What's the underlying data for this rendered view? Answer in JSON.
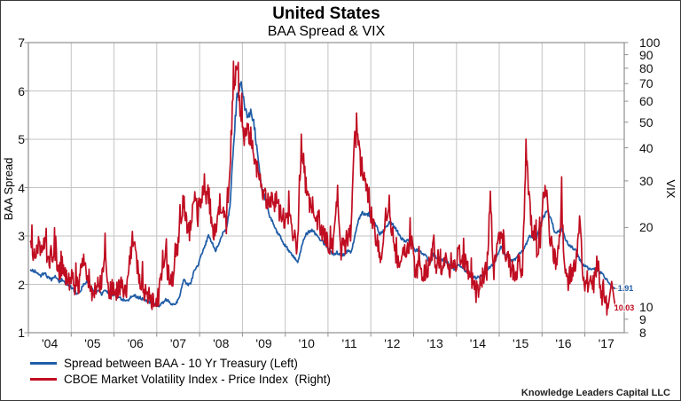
{
  "header": {
    "title": "United States",
    "subtitle": "BAA Spread & VIX"
  },
  "attribution": "Knowledge Leaders Capital LLC",
  "colors": {
    "spread_line": "#1f5ca6",
    "vix_line": "#c00d21",
    "grid": "#c3c3c3",
    "frame": "#8f8f8f",
    "leader": "#b3b3b3"
  },
  "chart_data": {
    "type": "line",
    "title": "United States",
    "subtitle": "BAA Spread & VIX",
    "x_axis": {
      "start_month": "2004-01",
      "end_month": "2017-09",
      "tick_labels": [
        "'04",
        "'05",
        "'06",
        "'07",
        "'08",
        "'09",
        "'10",
        "'11",
        "'12",
        "'13",
        "'14",
        "'15",
        "'16",
        "'17"
      ],
      "gridlines": true
    },
    "left_axis": {
      "label": "BAA Spread",
      "scale": "linear",
      "min": 1,
      "max": 7,
      "ticks": [
        7,
        6,
        5,
        4,
        3,
        2,
        1
      ]
    },
    "right_axis": {
      "label": "VIX",
      "scale": "log",
      "min": 8,
      "max": 100,
      "ticks": [
        100,
        90,
        80,
        70,
        60,
        50,
        40,
        30,
        20,
        10,
        9,
        8
      ]
    },
    "series": [
      {
        "name": "Spread between BAA - 10 Yr Treasury (Left)",
        "axis": "left",
        "color": "#1f5ca6",
        "end_label": "1.91",
        "resolution": "monthly",
        "values": [
          2.3,
          2.28,
          2.24,
          2.18,
          2.24,
          2.14,
          2.1,
          2.16,
          2.05,
          2.1,
          2.02,
          1.98,
          1.9,
          1.82,
          1.86,
          2.0,
          2.06,
          1.92,
          1.85,
          1.88,
          1.8,
          1.88,
          1.82,
          1.8,
          1.75,
          1.72,
          1.68,
          1.65,
          1.72,
          1.78,
          1.73,
          1.72,
          1.68,
          1.65,
          1.62,
          1.6,
          1.55,
          1.6,
          1.7,
          1.63,
          1.58,
          1.62,
          1.78,
          2.1,
          2.0,
          2.0,
          2.3,
          2.4,
          2.6,
          2.8,
          3.0,
          2.85,
          2.7,
          2.85,
          3.05,
          3.15,
          3.6,
          4.9,
          5.9,
          6.15,
          5.7,
          5.5,
          5.6,
          5.2,
          4.5,
          3.95,
          3.75,
          3.45,
          3.3,
          3.1,
          3.0,
          2.85,
          2.75,
          2.65,
          2.55,
          2.45,
          2.75,
          3.0,
          3.08,
          3.12,
          3.05,
          2.95,
          2.88,
          2.8,
          2.7,
          2.62,
          2.66,
          2.6,
          2.62,
          2.7,
          2.66,
          3.0,
          3.3,
          3.5,
          3.45,
          3.45,
          3.35,
          3.2,
          3.05,
          3.1,
          3.22,
          3.3,
          3.2,
          3.1,
          2.95,
          2.9,
          2.9,
          2.85,
          2.7,
          2.72,
          2.62,
          2.6,
          2.42,
          2.62,
          2.55,
          2.52,
          2.5,
          2.45,
          2.38,
          2.3,
          2.4,
          2.38,
          2.28,
          2.24,
          2.18,
          2.13,
          2.16,
          2.2,
          2.3,
          2.38,
          2.42,
          2.6,
          2.8,
          2.6,
          2.56,
          2.5,
          2.5,
          2.62,
          2.68,
          2.82,
          3.02,
          2.95,
          2.95,
          3.25,
          3.4,
          3.52,
          3.34,
          3.1,
          3.08,
          3.14,
          2.95,
          2.82,
          2.76,
          2.7,
          2.52,
          2.4,
          2.36,
          2.3,
          2.32,
          2.28,
          2.24,
          2.16,
          2.05,
          1.96,
          1.91
        ]
      },
      {
        "name": "CBOE Market Volatility Index - Price Index  (Right)",
        "axis": "right",
        "color": "#c00d21",
        "end_label": "10.03",
        "resolution": "monthly",
        "values": [
          16.5,
          15.6,
          17.2,
          16.2,
          17.6,
          15.2,
          15.3,
          16.2,
          13.6,
          14.6,
          13.2,
          12.6,
          12.9,
          11.6,
          12.9,
          14.6,
          13.4,
          11.9,
          11.1,
          12.9,
          12.1,
          15.2,
          11.9,
          11.6,
          11.4,
          12.0,
          11.8,
          11.6,
          15.8,
          18.6,
          14.4,
          12.4,
          11.6,
          11.1,
          10.6,
          11.1,
          10.6,
          14.6,
          14.1,
          13.1,
          13.2,
          15.6,
          20.5,
          26.0,
          20.3,
          19.2,
          26.0,
          22.2,
          26.5,
          25.2,
          27.0,
          20.6,
          18.1,
          23.2,
          24.5,
          20.6,
          34.0,
          70.0,
          80.0,
          52.0,
          45.0,
          46.0,
          44.0,
          36.5,
          30.5,
          28.2,
          26.2,
          25.2,
          24.5,
          25.6,
          22.6,
          21.6,
          22.2,
          22.6,
          17.6,
          17.1,
          42.0,
          30.5,
          25.2,
          24.6,
          22.6,
          20.1,
          19.6,
          17.6,
          17.1,
          17.6,
          26.0,
          16.6,
          16.6,
          18.6,
          19.6,
          44.0,
          41.0,
          31.0,
          30.0,
          26.0,
          20.2,
          18.1,
          15.6,
          17.6,
          22.0,
          21.1,
          17.1,
          15.1,
          15.1,
          16.6,
          17.1,
          17.6,
          13.6,
          13.9,
          13.1,
          13.9,
          13.4,
          17.1,
          14.1,
          14.3,
          14.6,
          14.9,
          13.1,
          14.3,
          15.6,
          15.6,
          14.6,
          13.9,
          12.6,
          11.3,
          12.1,
          13.3,
          13.6,
          25.0,
          13.6,
          17.6,
          19.6,
          15.6,
          14.9,
          13.6,
          13.4,
          14.6,
          13.9,
          40.0,
          24.6,
          17.1,
          16.6,
          18.1,
          27.0,
          25.5,
          16.6,
          15.1,
          15.6,
          24.0,
          13.1,
          12.6,
          14.1,
          14.6,
          22.0,
          12.6,
          11.6,
          11.9,
          12.1,
          15.0,
          11.1,
          10.6,
          9.9,
          12.5,
          10.03
        ]
      }
    ]
  }
}
